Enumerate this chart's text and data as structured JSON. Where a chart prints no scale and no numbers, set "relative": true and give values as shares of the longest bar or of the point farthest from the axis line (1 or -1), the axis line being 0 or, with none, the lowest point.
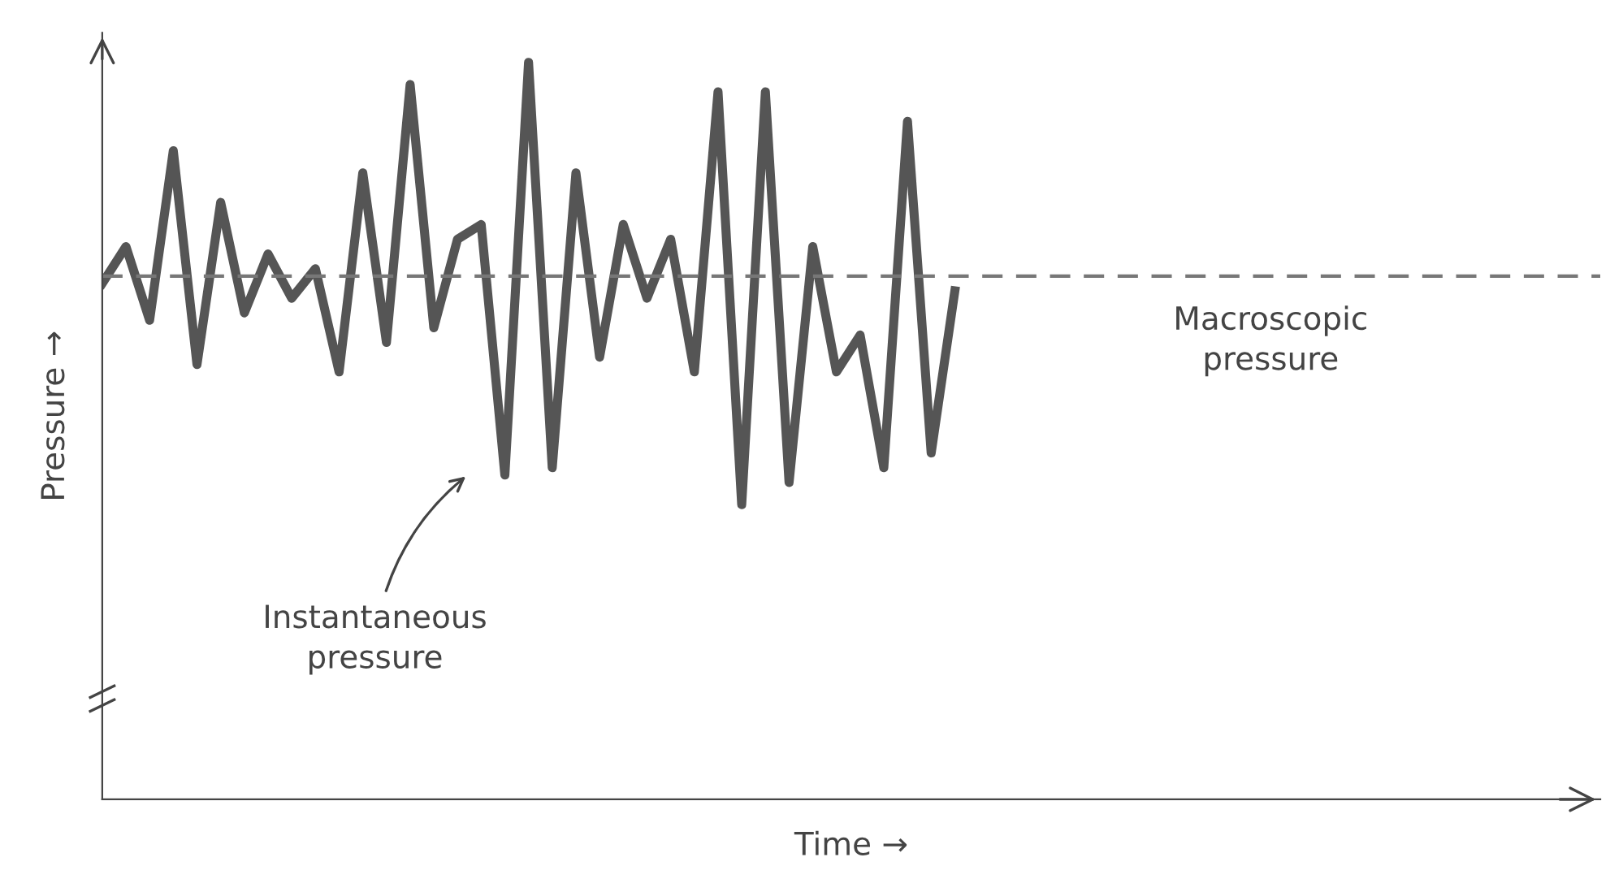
{
  "chart_data": {
    "type": "line",
    "relative": true,
    "xlabel": "Time →",
    "ylabel": "Pressure →",
    "marker": "none",
    "line_style": "solid",
    "categories": [
      null,
      null,
      null,
      null,
      null,
      null,
      null,
      null,
      null,
      null,
      null,
      null,
      null,
      null,
      null,
      null,
      null,
      null,
      null,
      null,
      null,
      null,
      null,
      null,
      null,
      null,
      null,
      null,
      null,
      null,
      null,
      null,
      null,
      null,
      null,
      null,
      null
    ],
    "series": [
      {
        "color": "#555555",
        "values": [
          0.7,
          0.75,
          0.65,
          0.88,
          0.59,
          0.81,
          0.66,
          0.74,
          0.68,
          0.72,
          0.58,
          0.85,
          0.62,
          0.97,
          0.64,
          0.76,
          0.78,
          0.44,
          1,
          0.45,
          0.85,
          0.6,
          0.78,
          0.68,
          0.76,
          0.58,
          0.96,
          0.4,
          0.96,
          0.43,
          0.75,
          0.58,
          0.63,
          0.45,
          0.92,
          0.47,
          0.69
        ]
      }
    ],
    "ref_lines": [
      {
        "axis": "y",
        "value": 0.71,
        "label": "Macroscopic\npressure",
        "color": "#777777",
        "line_style": "dashed"
      }
    ],
    "annotations": [
      "Instantaneous\npressure"
    ]
  }
}
